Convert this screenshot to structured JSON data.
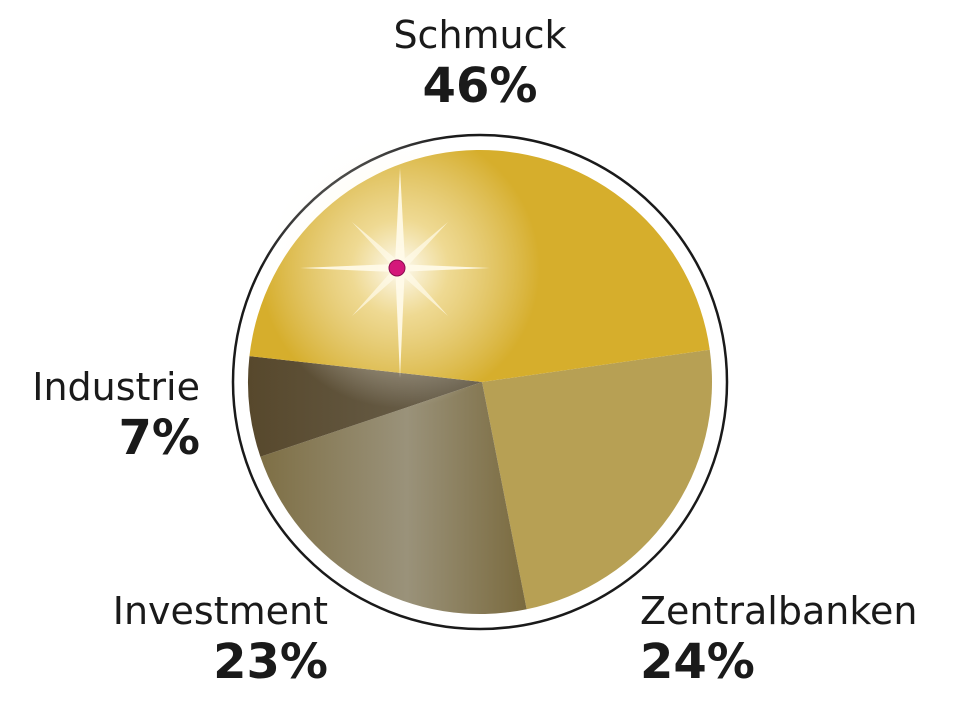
{
  "chart_data": {
    "type": "pie",
    "categories": [
      "Schmuck",
      "Zentralbanken",
      "Investment",
      "Industrie"
    ],
    "values": [
      46,
      24,
      23,
      7
    ],
    "value_labels": [
      "46%",
      "24%",
      "23%",
      "7%"
    ],
    "colors": [
      "#D6AE2C",
      "#B7A054",
      "#8C7D4F",
      "#5E5033"
    ],
    "legend": "none"
  }
}
